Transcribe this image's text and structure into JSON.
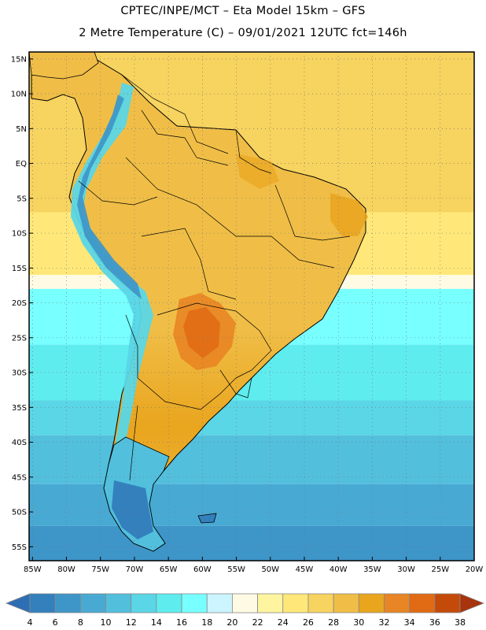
{
  "header": {
    "line1": "CPTEC/INPE/MCT –  Eta Model 15km – GFS",
    "line2": "2 Metre Temperature (C) – 09/01/2021 12UTC fct=146h"
  },
  "map": {
    "lat_labels": [
      "15N",
      "10N",
      "5N",
      "EQ",
      "5S",
      "10S",
      "15S",
      "20S",
      "25S",
      "30S",
      "35S",
      "40S",
      "45S",
      "50S",
      "55S"
    ],
    "lat_values": [
      15,
      10,
      5,
      0,
      -5,
      -10,
      -15,
      -20,
      -25,
      -30,
      -35,
      -40,
      -45,
      -50,
      -55
    ],
    "lon_labels": [
      "85W",
      "80W",
      "75W",
      "70W",
      "65W",
      "60W",
      "55W",
      "50W",
      "45W",
      "40W",
      "35W",
      "30W",
      "25W",
      "20W"
    ],
    "lon_values": [
      -85,
      -80,
      -75,
      -70,
      -65,
      -60,
      -55,
      -50,
      -45,
      -40,
      -35,
      -30,
      -25,
      -20
    ],
    "lon_range": [
      -85.5,
      -20
    ],
    "lat_range": [
      -57,
      16
    ],
    "ocean_temperature_bands": [
      {
        "lat_from": 16,
        "lat_to": -7,
        "temp_c": 26
      },
      {
        "lat_from": -7,
        "lat_to": -16,
        "temp_c": 24
      },
      {
        "lat_from": -16,
        "lat_to": -18,
        "temp_c": 20
      },
      {
        "lat_from": -18,
        "lat_to": -26,
        "temp_c": 16
      },
      {
        "lat_from": -26,
        "lat_to": -34,
        "temp_c": 14
      },
      {
        "lat_from": -34,
        "lat_to": -39,
        "temp_c": 12
      },
      {
        "lat_from": -39,
        "lat_to": -46,
        "temp_c": 10
      },
      {
        "lat_from": -46,
        "lat_to": -52,
        "temp_c": 8
      },
      {
        "lat_from": -52,
        "lat_to": -57,
        "temp_c": 6
      }
    ],
    "hot_core_c": 32
  },
  "colorbar": {
    "ticks": [
      "4",
      "6",
      "8",
      "10",
      "12",
      "14",
      "16",
      "18",
      "20",
      "22",
      "24",
      "26",
      "28",
      "30",
      "32",
      "34",
      "36",
      "38"
    ],
    "colors": [
      "#2e6eb4",
      "#3380bd",
      "#3d95c8",
      "#48aad3",
      "#52bfdd",
      "#5ad6e6",
      "#5fecef",
      "#78ffff",
      "#ccf5ff",
      "#fffae3",
      "#fff5a0",
      "#ffe879",
      "#f7d35f",
      "#f0be47",
      "#e9a51e",
      "#e88524",
      "#e16a14",
      "#c44a0a",
      "#a7340c"
    ]
  }
}
